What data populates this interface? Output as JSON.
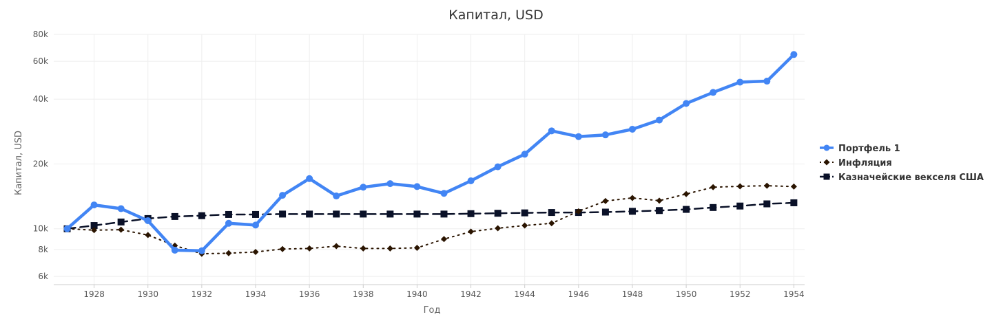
{
  "chart_data": {
    "type": "line",
    "title": "Капитал, USD",
    "xlabel": "Год",
    "ylabel": "Капитал, USD",
    "yscale": "log",
    "ylim": [
      5500,
      80000
    ],
    "xlim": [
      1926.5,
      1954.4
    ],
    "grid": true,
    "legend_position": "right",
    "x": [
      1927,
      1928,
      1929,
      1930,
      1931,
      1932,
      1933,
      1934,
      1935,
      1936,
      1937,
      1938,
      1939,
      1940,
      1941,
      1942,
      1943,
      1944,
      1945,
      1946,
      1947,
      1948,
      1949,
      1950,
      1951,
      1952,
      1953,
      1954
    ],
    "x_ticks": [
      1928,
      1930,
      1932,
      1934,
      1936,
      1938,
      1940,
      1942,
      1944,
      1946,
      1948,
      1950,
      1952,
      1954
    ],
    "y_ticks": [
      {
        "value": 6000,
        "label": "6k"
      },
      {
        "value": 8000,
        "label": "8k"
      },
      {
        "value": 10000,
        "label": "10k"
      },
      {
        "value": 20000,
        "label": "20k"
      },
      {
        "value": 40000,
        "label": "40k"
      },
      {
        "value": 60000,
        "label": "60k"
      },
      {
        "value": 80000,
        "label": "80k"
      }
    ],
    "series": [
      {
        "name": "Портфель 1",
        "color": "#4285f4",
        "marker": "circle",
        "dash": "solid",
        "values": [
          10000,
          12900,
          12400,
          10900,
          7950,
          7900,
          10600,
          10400,
          14300,
          17100,
          14200,
          15600,
          16200,
          15700,
          14600,
          16700,
          19400,
          22200,
          28500,
          26800,
          27300,
          29000,
          32000,
          38200,
          43000,
          48000,
          48500,
          64500
        ]
      },
      {
        "name": "Инфляция",
        "color": "#2a1400",
        "marker": "diamond",
        "dash": "dotted",
        "values": [
          10000,
          9850,
          9900,
          9350,
          8350,
          7650,
          7700,
          7800,
          8050,
          8100,
          8300,
          8100,
          8100,
          8150,
          8950,
          9700,
          10050,
          10350,
          10600,
          12050,
          13450,
          13900,
          13500,
          14500,
          15600,
          15750,
          15850,
          15700
        ]
      },
      {
        "name": "Казначейские векселя США",
        "color": "#0a1128",
        "marker": "square",
        "dash": "dashed",
        "values": [
          10000,
          10350,
          10750,
          11150,
          11400,
          11500,
          11650,
          11650,
          11700,
          11700,
          11700,
          11700,
          11700,
          11700,
          11700,
          11750,
          11800,
          11850,
          11900,
          11900,
          11950,
          12050,
          12150,
          12300,
          12550,
          12750,
          13050,
          13200
        ]
      }
    ]
  }
}
